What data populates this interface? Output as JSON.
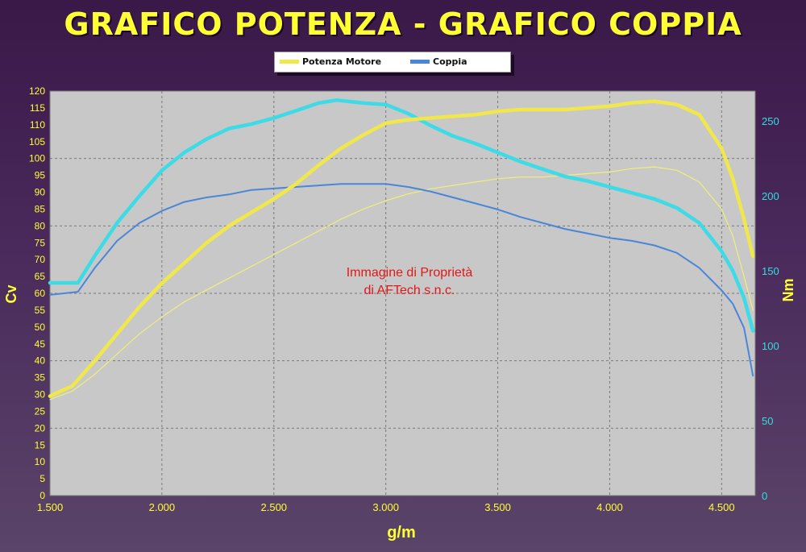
{
  "title": "GRAFICO POTENZA - GRAFICO COPPIA",
  "watermark": [
    "Immagine di Proprietà",
    "di AFTech s.n.c."
  ],
  "colors": {
    "power": "#f0e84a",
    "power_thin": "#eef07a",
    "torque": "#4a86d8",
    "torque_thick": "#3ddbe6",
    "plot_bg": "#c8c8c8",
    "left_axis_text": "#ffff33",
    "right_axis_text": "#33dede",
    "watermark": "#e01818"
  },
  "chart_data": {
    "type": "line",
    "title": "GRAFICO POTENZA - GRAFICO COPPIA",
    "xlabel": "g/m",
    "ylabel_left": "Cv",
    "ylabel_right": "Nm",
    "xlim": [
      1500,
      4650
    ],
    "ylim_left": [
      0,
      120
    ],
    "ylim_right": [
      0,
      270
    ],
    "x_ticks": [
      1500,
      2000,
      2500,
      3000,
      3500,
      4000,
      4500
    ],
    "x_tick_labels": [
      "1.500",
      "2.000",
      "2.500",
      "3.000",
      "3.500",
      "4.000",
      "4.500"
    ],
    "y_left_ticks": [
      0,
      5,
      10,
      15,
      20,
      25,
      30,
      35,
      40,
      45,
      50,
      55,
      60,
      65,
      70,
      75,
      80,
      85,
      90,
      95,
      100,
      105,
      110,
      115,
      120
    ],
    "y_right_ticks": [
      0,
      50,
      100,
      150,
      200,
      250
    ],
    "grid": true,
    "legend": {
      "position": "top-center",
      "entries": [
        "Potenza Motore",
        "Coppia"
      ]
    },
    "series": [
      {
        "name": "Potenza Motore",
        "axis": "left",
        "style": "thick",
        "points": [
          [
            1500,
            29.5
          ],
          [
            1600,
            32.5
          ],
          [
            1700,
            40
          ],
          [
            1800,
            48
          ],
          [
            1900,
            56
          ],
          [
            2000,
            63
          ],
          [
            2100,
            69
          ],
          [
            2200,
            75
          ],
          [
            2300,
            80
          ],
          [
            2400,
            84
          ],
          [
            2500,
            88
          ],
          [
            2600,
            92.5
          ],
          [
            2700,
            98
          ],
          [
            2800,
            103
          ],
          [
            2900,
            107
          ],
          [
            3000,
            110.5
          ],
          [
            3100,
            111.5
          ],
          [
            3200,
            112
          ],
          [
            3300,
            112.5
          ],
          [
            3400,
            113
          ],
          [
            3500,
            114
          ],
          [
            3600,
            114.5
          ],
          [
            3700,
            114.5
          ],
          [
            3800,
            114.5
          ],
          [
            3900,
            115
          ],
          [
            4000,
            115.5
          ],
          [
            4100,
            116.5
          ],
          [
            4200,
            117
          ],
          [
            4300,
            116
          ],
          [
            4400,
            113
          ],
          [
            4500,
            103
          ],
          [
            4550,
            94
          ],
          [
            4600,
            82
          ],
          [
            4640,
            71
          ]
        ]
      },
      {
        "name": "",
        "axis": "left",
        "style": "thin",
        "points": [
          [
            1500,
            28.5
          ],
          [
            1600,
            31
          ],
          [
            1700,
            36
          ],
          [
            1800,
            42
          ],
          [
            1900,
            48
          ],
          [
            2000,
            53
          ],
          [
            2100,
            57.5
          ],
          [
            2200,
            61
          ],
          [
            2300,
            64.5
          ],
          [
            2400,
            68
          ],
          [
            2500,
            71.5
          ],
          [
            2600,
            75
          ],
          [
            2700,
            78.5
          ],
          [
            2800,
            82
          ],
          [
            2900,
            85
          ],
          [
            3000,
            87.5
          ],
          [
            3100,
            89.5
          ],
          [
            3200,
            91
          ],
          [
            3300,
            92
          ],
          [
            3400,
            93
          ],
          [
            3500,
            94
          ],
          [
            3600,
            94.5
          ],
          [
            3700,
            94.5
          ],
          [
            3800,
            95
          ],
          [
            3900,
            95.5
          ],
          [
            4000,
            96
          ],
          [
            4100,
            97
          ],
          [
            4200,
            97.5
          ],
          [
            4300,
            96.5
          ],
          [
            4400,
            93
          ],
          [
            4500,
            85
          ],
          [
            4550,
            77
          ],
          [
            4600,
            65
          ],
          [
            4640,
            55
          ]
        ]
      },
      {
        "name": "",
        "axis": "right",
        "style": "thick",
        "points": [
          [
            1500,
            142
          ],
          [
            1625,
            142
          ],
          [
            1700,
            160
          ],
          [
            1800,
            182
          ],
          [
            1900,
            200
          ],
          [
            2000,
            217
          ],
          [
            2100,
            229
          ],
          [
            2200,
            238
          ],
          [
            2300,
            245
          ],
          [
            2400,
            248
          ],
          [
            2500,
            252
          ],
          [
            2600,
            257
          ],
          [
            2700,
            262
          ],
          [
            2780,
            264
          ],
          [
            2900,
            262
          ],
          [
            3000,
            261
          ],
          [
            3100,
            255
          ],
          [
            3200,
            247
          ],
          [
            3300,
            240
          ],
          [
            3400,
            235
          ],
          [
            3500,
            229
          ],
          [
            3600,
            223
          ],
          [
            3700,
            218
          ],
          [
            3800,
            213
          ],
          [
            3900,
            210
          ],
          [
            4000,
            206
          ],
          [
            4100,
            202
          ],
          [
            4200,
            198
          ],
          [
            4300,
            192
          ],
          [
            4400,
            182
          ],
          [
            4500,
            163
          ],
          [
            4550,
            150
          ],
          [
            4600,
            132
          ],
          [
            4640,
            110
          ]
        ]
      },
      {
        "name": "Coppia",
        "axis": "right",
        "style": "thin",
        "points": [
          [
            1500,
            134
          ],
          [
            1625,
            136
          ],
          [
            1700,
            152
          ],
          [
            1800,
            170
          ],
          [
            1900,
            182
          ],
          [
            2000,
            190
          ],
          [
            2100,
            196
          ],
          [
            2200,
            199
          ],
          [
            2300,
            201
          ],
          [
            2400,
            204
          ],
          [
            2500,
            205
          ],
          [
            2600,
            206
          ],
          [
            2700,
            207
          ],
          [
            2800,
            208
          ],
          [
            2900,
            208
          ],
          [
            3000,
            208
          ],
          [
            3100,
            206
          ],
          [
            3200,
            203
          ],
          [
            3300,
            199
          ],
          [
            3400,
            195
          ],
          [
            3500,
            191
          ],
          [
            3600,
            186
          ],
          [
            3700,
            182
          ],
          [
            3800,
            178
          ],
          [
            3900,
            175
          ],
          [
            4000,
            172
          ],
          [
            4100,
            170
          ],
          [
            4200,
            167
          ],
          [
            4300,
            162
          ],
          [
            4400,
            152
          ],
          [
            4500,
            137
          ],
          [
            4550,
            128
          ],
          [
            4600,
            112
          ],
          [
            4640,
            80
          ]
        ]
      }
    ]
  }
}
